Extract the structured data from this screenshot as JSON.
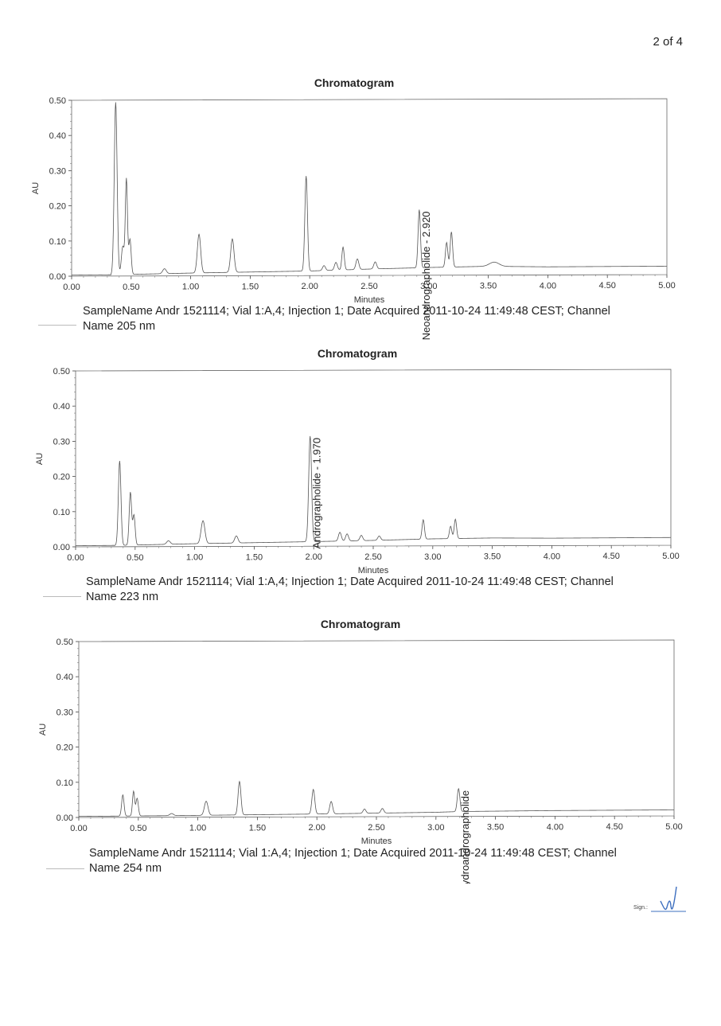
{
  "page": {
    "number_label": "2 of 4"
  },
  "signature": {
    "label": "Sign.:"
  },
  "chart_data": [
    {
      "type": "line",
      "title": "Chromatogram",
      "xlabel": "Minutes",
      "ylabel": "AU",
      "xlim": [
        0,
        5
      ],
      "ylim": [
        0,
        0.5
      ],
      "x_ticks": [
        "0.00",
        "0.50",
        "1.00",
        "1.50",
        "2.00",
        "2.50",
        "3.00",
        "3.50",
        "4.00",
        "4.50",
        "5.00"
      ],
      "y_ticks": [
        "0.00",
        "0.10",
        "0.20",
        "0.30",
        "0.40",
        "0.50"
      ],
      "baseline": [
        [
          0,
          0.003
        ],
        [
          0.4,
          0.004
        ],
        [
          1.0,
          0.008
        ],
        [
          2.0,
          0.013
        ],
        [
          2.5,
          0.018
        ],
        [
          3.0,
          0.022
        ],
        [
          3.5,
          0.025
        ],
        [
          4.0,
          0.023
        ],
        [
          5.0,
          0.024
        ]
      ],
      "peaks": [
        {
          "rt": 0.37,
          "h": 0.49,
          "w": 0.012
        },
        {
          "rt": 0.43,
          "h": 0.08,
          "w": 0.012
        },
        {
          "rt": 0.46,
          "h": 0.27,
          "w": 0.009
        },
        {
          "rt": 0.49,
          "h": 0.1,
          "w": 0.01
        },
        {
          "rt": 0.78,
          "h": 0.014,
          "w": 0.015
        },
        {
          "rt": 1.07,
          "h": 0.11,
          "w": 0.014
        },
        {
          "rt": 1.35,
          "h": 0.095,
          "w": 0.014
        },
        {
          "rt": 1.97,
          "h": 0.27,
          "w": 0.011
        },
        {
          "rt": 2.12,
          "h": 0.014,
          "w": 0.012
        },
        {
          "rt": 2.22,
          "h": 0.022,
          "w": 0.012
        },
        {
          "rt": 2.28,
          "h": 0.065,
          "w": 0.01
        },
        {
          "rt": 2.4,
          "h": 0.03,
          "w": 0.012
        },
        {
          "rt": 2.55,
          "h": 0.02,
          "w": 0.012
        },
        {
          "rt": 2.92,
          "h": 0.165,
          "w": 0.01
        },
        {
          "rt": 3.15,
          "h": 0.07,
          "w": 0.01
        },
        {
          "rt": 3.19,
          "h": 0.1,
          "w": 0.01
        },
        {
          "rt": 3.55,
          "h": 0.012,
          "w": 0.04
        }
      ],
      "annotations": [
        {
          "text": "Neoandrographolide - 2.920",
          "rt": 2.92
        }
      ],
      "legend": {
        "line1": "SampleName Andr 1521114; Vial 1:A,4; Injection 1; Date Acquired 2011-10-24 11:49:48 CEST; Channel",
        "line2": "Name 205 nm"
      }
    },
    {
      "type": "line",
      "title": "Chromatogram",
      "xlabel": "Minutes",
      "ylabel": "AU",
      "xlim": [
        0,
        5
      ],
      "ylim": [
        0,
        0.5
      ],
      "x_ticks": [
        "0.00",
        "0.50",
        "1.00",
        "1.50",
        "2.00",
        "2.50",
        "3.00",
        "3.50",
        "4.00",
        "4.50",
        "5.00"
      ],
      "y_ticks": [
        "0.00",
        "0.10",
        "0.20",
        "0.30",
        "0.40",
        "0.50"
      ],
      "baseline": [
        [
          0,
          0.003
        ],
        [
          0.4,
          0.004
        ],
        [
          1.0,
          0.008
        ],
        [
          2.0,
          0.013
        ],
        [
          2.5,
          0.016
        ],
        [
          3.0,
          0.02
        ],
        [
          3.5,
          0.022
        ],
        [
          4.0,
          0.021
        ],
        [
          5.0,
          0.022
        ]
      ],
      "peaks": [
        {
          "rt": 0.37,
          "h": 0.24,
          "w": 0.011
        },
        {
          "rt": 0.46,
          "h": 0.15,
          "w": 0.01
        },
        {
          "rt": 0.49,
          "h": 0.085,
          "w": 0.01
        },
        {
          "rt": 0.78,
          "h": 0.01,
          "w": 0.015
        },
        {
          "rt": 1.07,
          "h": 0.065,
          "w": 0.016
        },
        {
          "rt": 1.35,
          "h": 0.02,
          "w": 0.014
        },
        {
          "rt": 1.97,
          "h": 0.3,
          "w": 0.012
        },
        {
          "rt": 2.22,
          "h": 0.025,
          "w": 0.012
        },
        {
          "rt": 2.28,
          "h": 0.02,
          "w": 0.012
        },
        {
          "rt": 2.4,
          "h": 0.015,
          "w": 0.012
        },
        {
          "rt": 2.55,
          "h": 0.012,
          "w": 0.012
        },
        {
          "rt": 2.92,
          "h": 0.055,
          "w": 0.01
        },
        {
          "rt": 3.15,
          "h": 0.035,
          "w": 0.01
        },
        {
          "rt": 3.19,
          "h": 0.055,
          "w": 0.01
        }
      ],
      "annotations": [
        {
          "text": "Andrographolide - 1.970",
          "rt": 1.97
        }
      ],
      "legend": {
        "line1": "SampleName Andr 1521114; Vial 1:A,4; Injection 1; Date Acquired 2011-10-24 11:49:48 CEST; Channel",
        "line2": "Name 223 nm"
      }
    },
    {
      "type": "line",
      "title": "Chromatogram",
      "xlabel": "Minutes",
      "ylabel": "AU",
      "xlim": [
        0,
        5
      ],
      "ylim": [
        0,
        0.5
      ],
      "x_ticks": [
        "0.00",
        "0.50",
        "1.00",
        "1.50",
        "2.00",
        "2.50",
        "3.00",
        "3.50",
        "4.00",
        "4.50",
        "5.00"
      ],
      "y_ticks": [
        "0.00",
        "0.10",
        "0.20",
        "0.30",
        "0.40",
        "0.50"
      ],
      "baseline": [
        [
          0,
          0.003
        ],
        [
          1.0,
          0.005
        ],
        [
          2.0,
          0.008
        ],
        [
          3.0,
          0.012
        ],
        [
          3.2,
          0.014
        ],
        [
          4.0,
          0.016
        ],
        [
          5.0,
          0.017
        ]
      ],
      "peaks": [
        {
          "rt": 0.37,
          "h": 0.06,
          "w": 0.01
        },
        {
          "rt": 0.46,
          "h": 0.07,
          "w": 0.009
        },
        {
          "rt": 0.49,
          "h": 0.05,
          "w": 0.01
        },
        {
          "rt": 0.78,
          "h": 0.006,
          "w": 0.015
        },
        {
          "rt": 1.07,
          "h": 0.04,
          "w": 0.015
        },
        {
          "rt": 1.35,
          "h": 0.095,
          "w": 0.012
        },
        {
          "rt": 1.97,
          "h": 0.07,
          "w": 0.012
        },
        {
          "rt": 2.12,
          "h": 0.035,
          "w": 0.012
        },
        {
          "rt": 2.4,
          "h": 0.012,
          "w": 0.012
        },
        {
          "rt": 2.55,
          "h": 0.013,
          "w": 0.012
        },
        {
          "rt": 3.19,
          "h": 0.065,
          "w": 0.011
        }
      ],
      "annotations": [
        {
          "text": "Deoxy-didehydroandrographolide",
          "rt": 3.19
        }
      ],
      "legend": {
        "line1": "SampleName Andr 1521114; Vial 1:A,4; Injection 1; Date Acquired 2011-10-24 11:49:48 CEST; Channel",
        "line2": "Name 254 nm"
      }
    }
  ]
}
